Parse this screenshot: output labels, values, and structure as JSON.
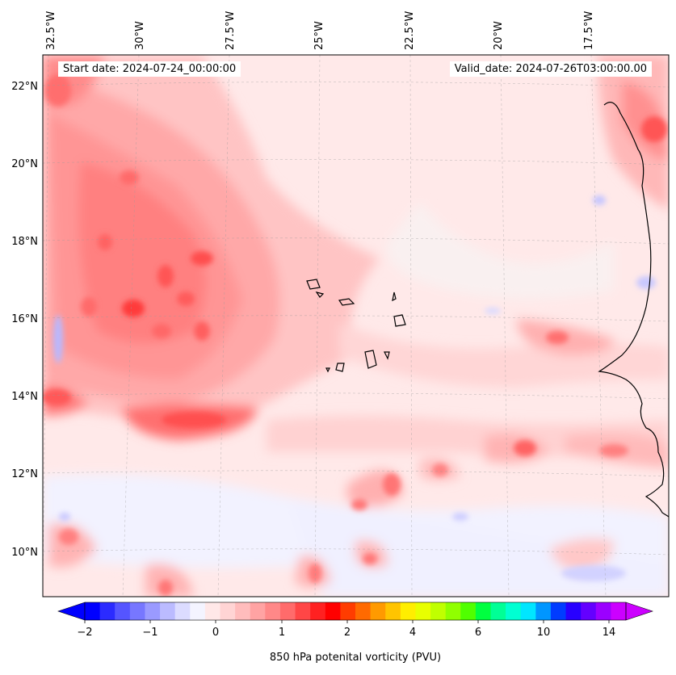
{
  "map": {
    "start_date": "Start date: 2024-07-24_00:00:00",
    "valid_date": "Valid_date: 2024-07-26T03:00:00.00",
    "lon_labels": [
      "32.5°W",
      "30°W",
      "27.5°W",
      "25°W",
      "22.5°W",
      "20°W",
      "17.5°W"
    ],
    "lat_labels": [
      "22°N",
      "20°N",
      "18°N",
      "16°N",
      "14°N",
      "12°N",
      "10°N"
    ],
    "extent": {
      "lon_min": -32.5,
      "lon_max": -15.3,
      "lat_min": 8.9,
      "lat_max": 22.7
    },
    "gridlines": true,
    "colorbar": {
      "title": "850 hPa potenital vorticity (PVU)",
      "tick_labels": [
        "−2",
        "−1",
        "0",
        "1",
        "2",
        "4",
        "6",
        "10",
        "14"
      ],
      "extend": "both",
      "colors": [
        "#0000ff",
        "#2b2bff",
        "#5555ff",
        "#7777ff",
        "#9a9aff",
        "#bbbbff",
        "#dcdcff",
        "#f4f4ff",
        "#ffe8e8",
        "#ffd4d4",
        "#ffbcbc",
        "#ffa3a3",
        "#ff8888",
        "#ff6b6b",
        "#ff4646",
        "#ff2121",
        "#ff0000",
        "#ff3c00",
        "#ff6a00",
        "#ff9a00",
        "#ffc400",
        "#ffee00",
        "#e8ff00",
        "#c0ff00",
        "#90ff00",
        "#50ff00",
        "#00ff40",
        "#00ff96",
        "#00ffd2",
        "#00e6ff",
        "#0096ff",
        "#003cff",
        "#2800ff",
        "#6400ff",
        "#9b00ff",
        "#cc00ff"
      ],
      "under_color": "#0000ff",
      "over_color": "#cc00ff"
    }
  }
}
